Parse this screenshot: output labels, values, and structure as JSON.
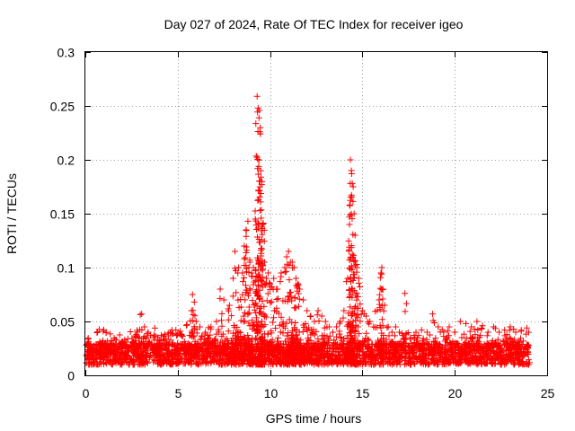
{
  "chart_data": {
    "type": "scatter",
    "title": "Day 027 of 2024, Rate Of TEC Index for receiver igeo",
    "xlabel": "GPS time / hours",
    "ylabel": "ROTI / TECUs",
    "xlim": [
      0,
      25
    ],
    "ylim": [
      0,
      0.3
    ],
    "xticks": [
      0,
      5,
      10,
      15,
      20,
      25
    ],
    "xtick_labels": [
      "0",
      "5",
      "10",
      "15",
      "20",
      "25"
    ],
    "yticks": [
      0,
      0.05,
      0.1,
      0.15,
      0.2,
      0.25,
      0.3
    ],
    "ytick_labels": [
      "0",
      "0.05",
      "0.1",
      "0.15",
      "0.2",
      "0.25",
      "0.3"
    ],
    "grid": true,
    "marker": "+",
    "marker_color": "#ff0000",
    "series": [
      {
        "name": "ROTI",
        "x": [
          0.05,
          0.2,
          0.4,
          0.6,
          0.9,
          1.1,
          1.4,
          1.7,
          2.0,
          2.3,
          2.6,
          2.9,
          3.05,
          3.2,
          3.4,
          3.7,
          4.0,
          4.3,
          4.6,
          4.9,
          5.2,
          5.5,
          5.75,
          5.8,
          5.9,
          6.0,
          6.2,
          6.5,
          6.8,
          7.1,
          7.3,
          7.5,
          7.8,
          8.0,
          8.1,
          8.3,
          8.5,
          8.6,
          8.7,
          8.8,
          8.9,
          9.0,
          9.1,
          9.2,
          9.3,
          9.35,
          9.4,
          9.45,
          9.5,
          9.55,
          9.6,
          9.7,
          9.8,
          9.9,
          10.0,
          10.2,
          10.4,
          10.6,
          10.8,
          10.9,
          11.0,
          11.1,
          11.2,
          11.3,
          11.4,
          11.5,
          11.6,
          11.8,
          12.0,
          12.2,
          12.4,
          12.6,
          12.8,
          13.0,
          13.2,
          13.4,
          13.6,
          13.8,
          14.0,
          14.2,
          14.3,
          14.35,
          14.4,
          14.45,
          14.5,
          14.55,
          14.6,
          14.7,
          14.8,
          15.0,
          15.2,
          15.4,
          15.6,
          15.8,
          15.9,
          16.0,
          16.05,
          16.1,
          16.2,
          16.4,
          16.6,
          16.8,
          17.0,
          17.3,
          17.6,
          17.9,
          18.2,
          18.5,
          18.8,
          19.1,
          19.4,
          19.7,
          20.0,
          20.3,
          20.6,
          20.9,
          21.2,
          21.5,
          21.8,
          22.1,
          22.4,
          22.7,
          23.0,
          23.3,
          23.6,
          23.9,
          24.0
        ],
        "y": [
          0.028,
          0.022,
          0.018,
          0.015,
          0.025,
          0.03,
          0.022,
          0.02,
          0.03,
          0.034,
          0.03,
          0.035,
          0.057,
          0.045,
          0.04,
          0.035,
          0.033,
          0.038,
          0.04,
          0.042,
          0.038,
          0.047,
          0.06,
          0.075,
          0.068,
          0.05,
          0.045,
          0.04,
          0.045,
          0.05,
          0.08,
          0.07,
          0.065,
          0.09,
          0.115,
          0.1,
          0.095,
          0.12,
          0.135,
          0.143,
          0.107,
          0.095,
          0.1,
          0.145,
          0.259,
          0.248,
          0.239,
          0.226,
          0.19,
          0.177,
          0.14,
          0.105,
          0.09,
          0.095,
          0.085,
          0.09,
          0.08,
          0.095,
          0.1,
          0.11,
          0.115,
          0.105,
          0.105,
          0.1,
          0.09,
          0.085,
          0.08,
          0.07,
          0.06,
          0.055,
          0.05,
          0.06,
          0.055,
          0.05,
          0.045,
          0.04,
          0.045,
          0.05,
          0.06,
          0.09,
          0.14,
          0.2,
          0.19,
          0.178,
          0.175,
          0.15,
          0.13,
          0.1,
          0.09,
          0.06,
          0.055,
          0.05,
          0.045,
          0.06,
          0.07,
          0.095,
          0.1,
          0.08,
          0.065,
          0.045,
          0.04,
          0.045,
          0.04,
          0.076,
          0.035,
          0.04,
          0.042,
          0.04,
          0.057,
          0.045,
          0.04,
          0.045,
          0.04,
          0.05,
          0.048,
          0.045,
          0.05,
          0.046,
          0.04,
          0.045,
          0.04,
          0.042,
          0.045,
          0.04,
          0.042,
          0.044,
          0.04
        ],
        "baseline_band": [
          0.01,
          0.03
        ]
      }
    ]
  }
}
